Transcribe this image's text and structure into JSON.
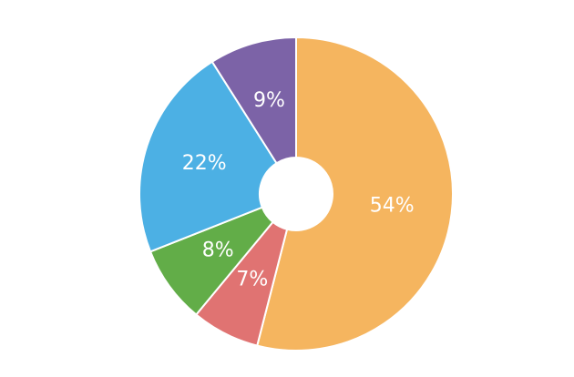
{
  "chart_data": {
    "type": "donut",
    "values": [
      54,
      7,
      8,
      22,
      9
    ],
    "value_labels": [
      "54%",
      "7%",
      "8%",
      "22%",
      "9%"
    ],
    "colors": [
      "#f5b55f",
      "#e07372",
      "#62ad48",
      "#4cb0e4",
      "#7c63a7"
    ]
  }
}
